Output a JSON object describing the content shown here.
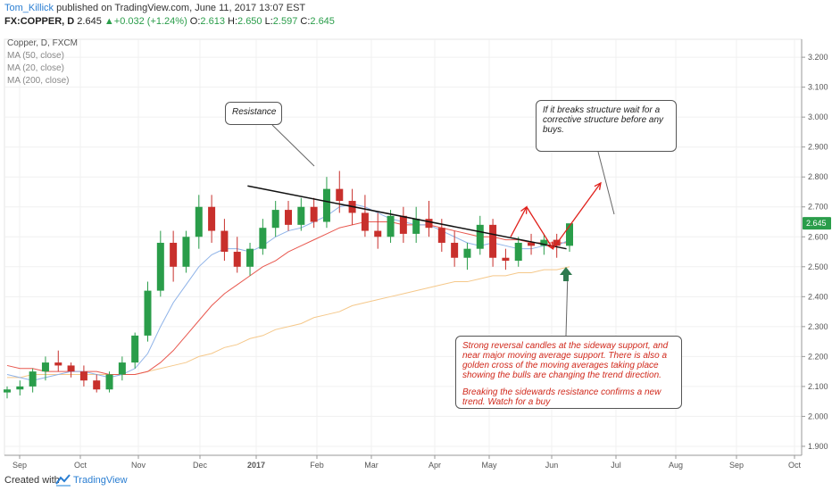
{
  "header": {
    "author": "Tom_Killick",
    "published": "published on TradingView.com, June 11, 2017 13:07 EST",
    "symbol": "FX:COPPER, D",
    "last": "2.645",
    "change": "+0.032 (+1.24%)",
    "o_label": "O:",
    "o_value": "2.613",
    "h_label": "H:",
    "h_value": "2.650",
    "l_label": "L:",
    "l_value": "2.597",
    "c_label": "C:",
    "c_value": "2.645"
  },
  "legend": {
    "title": "Copper, D, FXCM",
    "ma50": "MA (50, close)",
    "ma20": "MA (20, close)",
    "ma200": "MA (200, close)"
  },
  "annotations": {
    "resistance": "Resistance",
    "structure": "If it breaks structure wait for a corrective structure before any buys.",
    "reversal_p1": "Strong reversal candles at the sideway support, and near major moving average support. There is also a golden cross of the moving averages taking place showing the bulls are changing the trend direction.",
    "reversal_p2": "Breaking the sidewards resistance confirms a new trend. Watch for a buy"
  },
  "footer": {
    "created": "Created with",
    "brand": "TradingView"
  },
  "colors": {
    "up": "#2a9d4a",
    "down": "#c8302c",
    "ma20": "#8fb3e8",
    "ma50": "#e8584f",
    "ma200": "#f5c88a",
    "arrow_red": "#e0201b",
    "arrow_green": "#2f7a4f",
    "price_tag": "#2a9d4a"
  },
  "chart_data": {
    "type": "candlestick",
    "x_labels": [
      "Sep",
      "Oct",
      "Nov",
      "Dec",
      "2017",
      "Feb",
      "Mar",
      "Apr",
      "May",
      "Jun",
      "Jul",
      "Aug",
      "Sep",
      "Oct"
    ],
    "y_ticks": [
      "3.200",
      "3.100",
      "3.000",
      "2.900",
      "2.800",
      "2.700",
      "2.600",
      "2.500",
      "2.400",
      "2.300",
      "2.200",
      "2.100",
      "2.000",
      "1.900"
    ],
    "ylim": [
      1.87,
      3.26
    ],
    "last_price_label": "2.645",
    "candles_weekly_ohlc": [
      [
        2.08,
        2.1,
        2.06,
        2.09
      ],
      [
        2.09,
        2.12,
        2.07,
        2.1
      ],
      [
        2.1,
        2.16,
        2.08,
        2.15
      ],
      [
        2.15,
        2.2,
        2.12,
        2.18
      ],
      [
        2.18,
        2.22,
        2.15,
        2.17
      ],
      [
        2.17,
        2.18,
        2.13,
        2.15
      ],
      [
        2.15,
        2.17,
        2.1,
        2.12
      ],
      [
        2.12,
        2.14,
        2.08,
        2.09
      ],
      [
        2.09,
        2.15,
        2.08,
        2.14
      ],
      [
        2.14,
        2.2,
        2.12,
        2.18
      ],
      [
        2.18,
        2.28,
        2.16,
        2.27
      ],
      [
        2.27,
        2.45,
        2.25,
        2.42
      ],
      [
        2.42,
        2.62,
        2.4,
        2.58
      ],
      [
        2.58,
        2.62,
        2.45,
        2.5
      ],
      [
        2.5,
        2.62,
        2.48,
        2.6
      ],
      [
        2.6,
        2.74,
        2.56,
        2.7
      ],
      [
        2.7,
        2.74,
        2.58,
        2.62
      ],
      [
        2.62,
        2.66,
        2.52,
        2.55
      ],
      [
        2.55,
        2.6,
        2.48,
        2.5
      ],
      [
        2.5,
        2.58,
        2.47,
        2.56
      ],
      [
        2.56,
        2.66,
        2.54,
        2.63
      ],
      [
        2.63,
        2.72,
        2.6,
        2.69
      ],
      [
        2.69,
        2.72,
        2.62,
        2.64
      ],
      [
        2.64,
        2.73,
        2.62,
        2.7
      ],
      [
        2.7,
        2.73,
        2.63,
        2.65
      ],
      [
        2.65,
        2.8,
        2.63,
        2.76
      ],
      [
        2.76,
        2.82,
        2.68,
        2.72
      ],
      [
        2.72,
        2.76,
        2.64,
        2.68
      ],
      [
        2.68,
        2.74,
        2.6,
        2.62
      ],
      [
        2.62,
        2.68,
        2.56,
        2.6
      ],
      [
        2.6,
        2.69,
        2.58,
        2.67
      ],
      [
        2.67,
        2.7,
        2.58,
        2.61
      ],
      [
        2.61,
        2.7,
        2.58,
        2.66
      ],
      [
        2.66,
        2.72,
        2.6,
        2.63
      ],
      [
        2.63,
        2.66,
        2.55,
        2.58
      ],
      [
        2.58,
        2.62,
        2.5,
        2.53
      ],
      [
        2.53,
        2.58,
        2.49,
        2.56
      ],
      [
        2.56,
        2.67,
        2.54,
        2.64
      ],
      [
        2.64,
        2.66,
        2.5,
        2.53
      ],
      [
        2.53,
        2.56,
        2.49,
        2.52
      ],
      [
        2.52,
        2.6,
        2.5,
        2.58
      ],
      [
        2.58,
        2.61,
        2.54,
        2.57
      ],
      [
        2.57,
        2.61,
        2.54,
        2.59
      ],
      [
        2.59,
        2.61,
        2.53,
        2.57
      ],
      [
        2.57,
        2.63,
        2.55,
        2.645
      ]
    ],
    "ma20": [
      2.14,
      2.13,
      2.12,
      2.13,
      2.14,
      2.15,
      2.15,
      2.14,
      2.13,
      2.14,
      2.16,
      2.21,
      2.3,
      2.38,
      2.44,
      2.5,
      2.54,
      2.56,
      2.56,
      2.55,
      2.57,
      2.6,
      2.62,
      2.63,
      2.65,
      2.67,
      2.7,
      2.71,
      2.7,
      2.68,
      2.66,
      2.65,
      2.64,
      2.64,
      2.62,
      2.6,
      2.58,
      2.57,
      2.58,
      2.57,
      2.56,
      2.56,
      2.57,
      2.57,
      2.59
    ],
    "ma50": [
      2.17,
      2.16,
      2.16,
      2.15,
      2.15,
      2.15,
      2.15,
      2.15,
      2.14,
      2.14,
      2.14,
      2.15,
      2.18,
      2.22,
      2.27,
      2.32,
      2.37,
      2.41,
      2.44,
      2.47,
      2.5,
      2.52,
      2.55,
      2.57,
      2.59,
      2.61,
      2.63,
      2.64,
      2.65,
      2.65,
      2.65,
      2.64,
      2.64,
      2.64,
      2.63,
      2.62,
      2.61,
      2.6,
      2.6,
      2.59,
      2.59,
      2.58,
      2.58,
      2.58,
      2.58
    ],
    "ma200": [
      2.13,
      2.13,
      2.14,
      2.14,
      2.14,
      2.14,
      2.14,
      2.14,
      2.14,
      2.14,
      2.14,
      2.15,
      2.16,
      2.17,
      2.18,
      2.2,
      2.21,
      2.23,
      2.24,
      2.26,
      2.27,
      2.29,
      2.3,
      2.31,
      2.33,
      2.34,
      2.35,
      2.37,
      2.38,
      2.39,
      2.4,
      2.41,
      2.42,
      2.43,
      2.44,
      2.45,
      2.45,
      2.46,
      2.47,
      2.47,
      2.48,
      2.48,
      2.49,
      2.49,
      2.5
    ],
    "resistance_line": {
      "x": [
        0.305,
        0.705
      ],
      "y": [
        2.77,
        2.56
      ]
    },
    "projection_path": {
      "x": [
        0.635,
        0.655,
        0.688,
        0.748
      ],
      "y": [
        2.6,
        2.7,
        2.56,
        2.78
      ]
    }
  }
}
